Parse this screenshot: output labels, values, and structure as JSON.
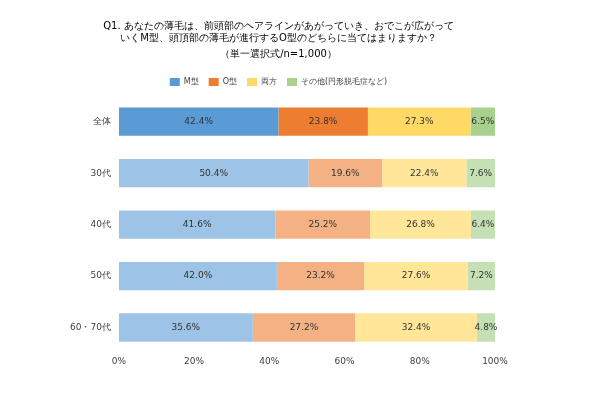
{
  "chart_data": {
    "type": "bar",
    "orientation": "horizontal",
    "stacked": true,
    "title": [
      "Q1. あなたの薄毛は、前頭部のヘアラインがあがっていき、おでこが広がって",
      "いくM型、頭頂部の薄毛が進行するO型のどちらに当てはまりますか？"
    ],
    "subtitle": "（単一選択式/n=1,000）",
    "categories": [
      "全体",
      "30代",
      "40代",
      "50代",
      "60・70代"
    ],
    "series": [
      {
        "name": "M型",
        "color": "#5b9bd5",
        "colors": [
          "#5b9bd5",
          "#9dc3e6",
          "#9dc3e6",
          "#9dc3e6",
          "#9dc3e6"
        ],
        "values": [
          42.4,
          50.4,
          41.6,
          42.0,
          35.6
        ],
        "value_labels": [
          "42.4%",
          "50.4%",
          "41.6%",
          "42.0%",
          "35.6%"
        ]
      },
      {
        "name": "O型",
        "color": "#ed7d31",
        "colors": [
          "#ed7d31",
          "#f4b183",
          "#f4b183",
          "#f4b183",
          "#f4b183"
        ],
        "values": [
          23.8,
          19.6,
          25.2,
          23.2,
          27.2
        ],
        "value_labels": [
          "23.8%",
          "19.6%",
          "25.2%",
          "23.2%",
          "27.2%"
        ]
      },
      {
        "name": "両方",
        "color": "#ffd966",
        "colors": [
          "#ffd966",
          "#ffe699",
          "#ffe699",
          "#ffe699",
          "#ffe699"
        ],
        "values": [
          27.3,
          22.4,
          26.8,
          27.6,
          32.4
        ],
        "value_labels": [
          "27.3%",
          "22.4%",
          "26.8%",
          "27.6%",
          "32.4%"
        ]
      },
      {
        "name": "その他(円形脱毛症など)",
        "color": "#a9d18e",
        "colors": [
          "#a9d18e",
          "#c5e0b4",
          "#c5e0b4",
          "#c5e0b4",
          "#c5e0b4"
        ],
        "values": [
          6.5,
          7.6,
          6.4,
          7.2,
          4.8
        ],
        "value_labels": [
          "6.5%",
          "7.6%",
          "6.4%",
          "7.2%",
          "4.8%"
        ]
      }
    ],
    "xlim": [
      0,
      100
    ],
    "xticks": [
      {
        "value": 0,
        "label": "0%"
      },
      {
        "value": 20,
        "label": "20%"
      },
      {
        "value": 40,
        "label": "40%"
      },
      {
        "value": 60,
        "label": "60%"
      },
      {
        "value": 80,
        "label": "80%"
      },
      {
        "value": 100,
        "label": "100%"
      }
    ],
    "legend": "top",
    "grid": false,
    "data_labels": true
  }
}
